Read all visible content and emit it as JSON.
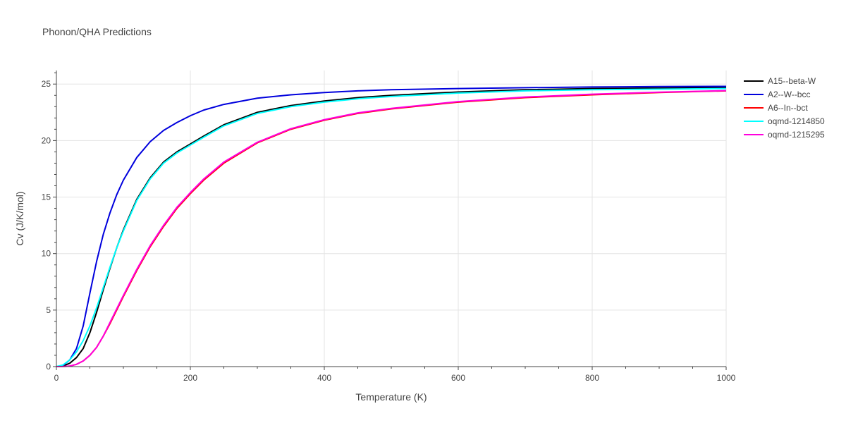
{
  "chart_data": {
    "type": "line",
    "title": "Phonon/QHA Predictions",
    "xlabel": "Temperature (K)",
    "ylabel": "Cv (J/K/mol)",
    "xlim": [
      0,
      1000
    ],
    "ylim": [
      0,
      26.2
    ],
    "xticks": [
      0,
      200,
      400,
      600,
      800,
      1000
    ],
    "yticks": [
      0,
      5,
      10,
      15,
      20,
      25
    ],
    "grid": true,
    "legend_position": "right",
    "series": [
      {
        "name": "A15--beta-W",
        "color": "#000000",
        "x": [
          0,
          10,
          20,
          30,
          40,
          50,
          60,
          70,
          80,
          90,
          100,
          120,
          140,
          160,
          180,
          200,
          220,
          250,
          300,
          350,
          400,
          450,
          500,
          600,
          700,
          800,
          900,
          1000
        ],
        "y": [
          0,
          0.05,
          0.3,
          0.8,
          1.6,
          3.0,
          4.8,
          6.8,
          8.7,
          10.5,
          12.1,
          14.8,
          16.7,
          18.1,
          19.0,
          19.7,
          20.4,
          21.4,
          22.5,
          23.1,
          23.5,
          23.8,
          24.0,
          24.3,
          24.5,
          24.6,
          24.65,
          24.7
        ]
      },
      {
        "name": "A2--W--bcc",
        "color": "#0000dd",
        "x": [
          0,
          10,
          20,
          30,
          40,
          50,
          60,
          70,
          80,
          90,
          100,
          120,
          140,
          160,
          180,
          200,
          220,
          250,
          300,
          350,
          400,
          450,
          500,
          600,
          700,
          800,
          900,
          1000
        ],
        "y": [
          0,
          0.1,
          0.6,
          1.6,
          3.6,
          6.5,
          9.3,
          11.7,
          13.6,
          15.2,
          16.5,
          18.5,
          19.9,
          20.9,
          21.6,
          22.2,
          22.7,
          23.2,
          23.75,
          24.05,
          24.25,
          24.4,
          24.5,
          24.6,
          24.68,
          24.74,
          24.78,
          24.8
        ]
      },
      {
        "name": "A6--In--bct",
        "color": "#ff0000",
        "x": [
          0,
          10,
          20,
          30,
          40,
          50,
          60,
          70,
          80,
          90,
          100,
          120,
          140,
          160,
          180,
          200,
          220,
          250,
          300,
          350,
          400,
          450,
          500,
          600,
          700,
          800,
          900,
          1000
        ],
        "y": [
          0,
          0.01,
          0.05,
          0.2,
          0.5,
          1.0,
          1.7,
          2.7,
          3.8,
          5.0,
          6.2,
          8.5,
          10.6,
          12.4,
          14.0,
          15.3,
          16.5,
          18.0,
          19.8,
          21.0,
          21.8,
          22.4,
          22.8,
          23.4,
          23.8,
          24.05,
          24.25,
          24.4
        ]
      },
      {
        "name": "oqmd-1214850",
        "color": "#00ffff",
        "x": [
          0,
          10,
          20,
          30,
          40,
          50,
          60,
          70,
          80,
          90,
          100,
          120,
          140,
          160,
          180,
          200,
          220,
          250,
          300,
          350,
          400,
          450,
          500,
          600,
          700,
          800,
          900,
          1000
        ],
        "y": [
          0,
          0.15,
          0.6,
          1.3,
          2.3,
          3.6,
          5.2,
          7.0,
          8.8,
          10.5,
          12.0,
          14.7,
          16.6,
          18.0,
          18.9,
          19.6,
          20.3,
          21.3,
          22.4,
          23.0,
          23.4,
          23.7,
          23.9,
          24.2,
          24.4,
          24.5,
          24.55,
          24.6
        ]
      },
      {
        "name": "oqmd-1215295",
        "color": "#ff00dd",
        "x": [
          0,
          10,
          20,
          30,
          40,
          50,
          60,
          70,
          80,
          90,
          100,
          120,
          140,
          160,
          180,
          200,
          220,
          250,
          300,
          350,
          400,
          450,
          500,
          600,
          700,
          800,
          900,
          1000
        ],
        "y": [
          0,
          0.01,
          0.05,
          0.2,
          0.5,
          1.0,
          1.7,
          2.7,
          3.9,
          5.1,
          6.3,
          8.6,
          10.7,
          12.5,
          14.1,
          15.4,
          16.6,
          18.1,
          19.85,
          21.05,
          21.85,
          22.45,
          22.85,
          23.45,
          23.85,
          24.1,
          24.28,
          24.42
        ]
      }
    ]
  }
}
